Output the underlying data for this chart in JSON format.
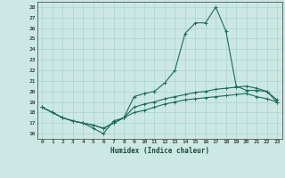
{
  "title": "",
  "xlabel": "Humidex (Indice chaleur)",
  "xlim": [
    -0.5,
    23.5
  ],
  "ylim": [
    15.5,
    28.5
  ],
  "yticks": [
    16,
    17,
    18,
    19,
    20,
    21,
    22,
    23,
    24,
    25,
    26,
    27,
    28
  ],
  "xticks": [
    0,
    1,
    2,
    3,
    4,
    5,
    6,
    7,
    8,
    9,
    10,
    11,
    12,
    13,
    14,
    15,
    16,
    17,
    18,
    19,
    20,
    21,
    22,
    23
  ],
  "bg_color": "#cce8e4",
  "grid_color": "#a8d4d0",
  "line_color": "#1a6b5a",
  "line_main": [
    18.5,
    18.0,
    17.5,
    17.2,
    17.0,
    16.5,
    16.0,
    17.2,
    17.5,
    19.5,
    19.8,
    20.0,
    20.8,
    22.0,
    25.5,
    26.5,
    26.5,
    28.0,
    25.7,
    20.5,
    20.1,
    20.1,
    20.0,
    19.0
  ],
  "line_low": [
    18.5,
    18.0,
    17.5,
    17.2,
    17.0,
    16.8,
    16.5,
    17.0,
    17.5,
    18.0,
    18.2,
    18.5,
    18.8,
    19.0,
    19.2,
    19.3,
    19.4,
    19.5,
    19.6,
    19.7,
    19.8,
    19.5,
    19.3,
    19.0
  ],
  "line_high": [
    18.5,
    18.0,
    17.5,
    17.2,
    17.0,
    16.8,
    16.5,
    17.0,
    17.5,
    18.5,
    18.8,
    19.0,
    19.3,
    19.5,
    19.7,
    19.9,
    20.0,
    20.2,
    20.3,
    20.4,
    20.5,
    20.3,
    20.0,
    19.2
  ]
}
